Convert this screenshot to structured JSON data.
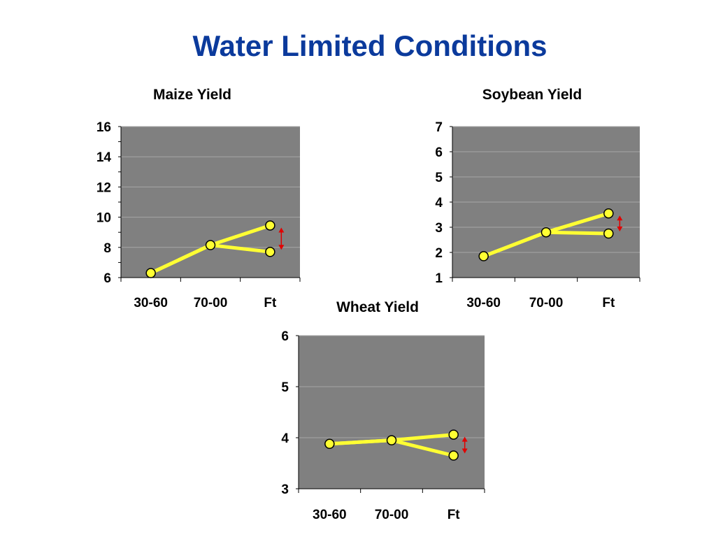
{
  "page": {
    "title": "Water Limited Conditions"
  },
  "colors": {
    "title": "#0b3a9c",
    "plot_background": "#808080",
    "gridline": "#a6a6a6",
    "series_line": "#ffff33",
    "marker_fill": "#ffff33",
    "marker_stroke": "#000000",
    "arrow": "#e00000"
  },
  "chart_data": [
    {
      "id": "maize",
      "type": "line",
      "title": "Maize Yield",
      "categories": [
        "30-60",
        "70-00",
        "Ft"
      ],
      "ylim": [
        6,
        16
      ],
      "yticks": [
        6,
        8,
        10,
        12,
        14,
        16
      ],
      "grid": true,
      "series": [
        {
          "values": [
            6.3,
            8.15,
            9.45
          ]
        },
        {
          "values": [
            6.3,
            8.15,
            7.7
          ]
        }
      ],
      "annotation": "double-headed arrow between the two Ft values"
    },
    {
      "id": "soybean",
      "type": "line",
      "title": "Soybean Yield",
      "categories": [
        "30-60",
        "70-00",
        "Ft"
      ],
      "ylim": [
        1,
        7
      ],
      "yticks": [
        1,
        2,
        3,
        4,
        5,
        6,
        7
      ],
      "grid": true,
      "series": [
        {
          "values": [
            1.85,
            2.8,
            3.55
          ]
        },
        {
          "values": [
            1.85,
            2.8,
            2.75
          ]
        }
      ],
      "annotation": "double-headed arrow between the two Ft values"
    },
    {
      "id": "wheat",
      "type": "line",
      "title": "Wheat Yield",
      "categories": [
        "30-60",
        "70-00",
        "Ft"
      ],
      "ylim": [
        3,
        6
      ],
      "yticks": [
        3,
        4,
        5,
        6
      ],
      "grid": true,
      "series": [
        {
          "values": [
            3.88,
            3.95,
            4.06
          ]
        },
        {
          "values": [
            3.88,
            3.95,
            3.65
          ]
        }
      ],
      "annotation": "double-headed arrow between the two Ft values"
    }
  ]
}
